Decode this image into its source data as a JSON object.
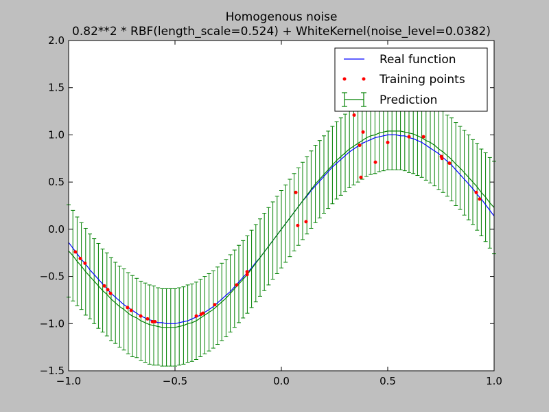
{
  "chart_data": {
    "type": "line",
    "title": "Homogenous noise",
    "subtitle": "0.82**2 * RBF(length_scale=0.524) + WhiteKernel(noise_level=0.0382)",
    "xlabel": "",
    "ylabel": "",
    "xlim": [
      -1.0,
      1.0
    ],
    "ylim": [
      -1.5,
      2.0
    ],
    "xticks": [
      "−1.0",
      "−0.5",
      "0.0",
      "0.5",
      "1.0"
    ],
    "xtick_values": [
      -1.0,
      -0.5,
      0.0,
      0.5,
      1.0
    ],
    "yticks": [
      "−1.5",
      "−1.0",
      "−0.5",
      "0.0",
      "0.5",
      "1.0",
      "1.5",
      "2.0"
    ],
    "ytick_values": [
      -1.5,
      -1.0,
      -0.5,
      0.0,
      0.5,
      1.0,
      1.5,
      2.0
    ],
    "grid": false,
    "legend_placement": "top-right",
    "legend": [
      "Real function",
      "Training points",
      "Prediction"
    ],
    "colors": {
      "real": "#0000ff",
      "points": "#ff0000",
      "prediction": "#008000",
      "background": "#bfbfbf",
      "axes": "#ffffff"
    },
    "x": [
      -1.0,
      -0.98,
      -0.96,
      -0.94,
      -0.92,
      -0.9,
      -0.88,
      -0.86,
      -0.84,
      -0.82,
      -0.8,
      -0.78,
      -0.76,
      -0.74,
      -0.72,
      -0.7,
      -0.68,
      -0.66,
      -0.64,
      -0.62,
      -0.6,
      -0.58,
      -0.56,
      -0.54,
      -0.52,
      -0.5,
      -0.48,
      -0.46,
      -0.44,
      -0.42,
      -0.4,
      -0.38,
      -0.36,
      -0.34,
      -0.32,
      -0.3,
      -0.28,
      -0.26,
      -0.24,
      -0.22,
      -0.2,
      -0.18,
      -0.16,
      -0.14,
      -0.12,
      -0.1,
      -0.08,
      -0.06,
      -0.04,
      -0.02,
      0.0,
      0.02,
      0.04,
      0.06,
      0.08,
      0.1,
      0.12,
      0.14,
      0.16,
      0.18,
      0.2,
      0.22,
      0.24,
      0.26,
      0.28,
      0.3,
      0.32,
      0.34,
      0.36,
      0.38,
      0.4,
      0.42,
      0.44,
      0.46,
      0.48,
      0.5,
      0.52,
      0.54,
      0.56,
      0.58,
      0.6,
      0.62,
      0.64,
      0.66,
      0.68,
      0.7,
      0.72,
      0.74,
      0.76,
      0.78,
      0.8,
      0.82,
      0.84,
      0.86,
      0.88,
      0.9,
      0.92,
      0.94,
      0.96,
      0.98,
      1.0
    ],
    "series": [
      {
        "name": "Real function",
        "kind": "line",
        "y": [
          -0.14,
          -0.2,
          -0.26,
          -0.32,
          -0.37,
          -0.43,
          -0.48,
          -0.53,
          -0.58,
          -0.63,
          -0.68,
          -0.72,
          -0.76,
          -0.8,
          -0.83,
          -0.86,
          -0.89,
          -0.92,
          -0.94,
          -0.96,
          -0.97,
          -0.99,
          -0.99,
          -1.0,
          -1.0,
          -1.0,
          -0.99,
          -0.98,
          -0.97,
          -0.95,
          -0.93,
          -0.91,
          -0.88,
          -0.85,
          -0.82,
          -0.78,
          -0.74,
          -0.7,
          -0.66,
          -0.61,
          -0.56,
          -0.51,
          -0.46,
          -0.41,
          -0.35,
          -0.3,
          -0.24,
          -0.18,
          -0.12,
          -0.06,
          0.0,
          0.06,
          0.12,
          0.18,
          0.24,
          0.3,
          0.35,
          0.41,
          0.46,
          0.51,
          0.56,
          0.61,
          0.66,
          0.7,
          0.74,
          0.78,
          0.82,
          0.85,
          0.88,
          0.91,
          0.93,
          0.95,
          0.97,
          0.98,
          0.99,
          1.0,
          1.0,
          1.0,
          0.99,
          0.99,
          0.97,
          0.96,
          0.94,
          0.92,
          0.89,
          0.86,
          0.83,
          0.8,
          0.76,
          0.72,
          0.68,
          0.63,
          0.58,
          0.53,
          0.48,
          0.43,
          0.37,
          0.32,
          0.26,
          0.2,
          0.14
        ]
      },
      {
        "name": "Prediction",
        "kind": "errorbar",
        "y": [
          -0.23,
          -0.28,
          -0.34,
          -0.39,
          -0.45,
          -0.5,
          -0.55,
          -0.6,
          -0.65,
          -0.69,
          -0.74,
          -0.78,
          -0.82,
          -0.85,
          -0.89,
          -0.92,
          -0.94,
          -0.97,
          -0.99,
          -1.01,
          -1.02,
          -1.03,
          -1.04,
          -1.04,
          -1.04,
          -1.04,
          -1.03,
          -1.02,
          -1.0,
          -0.99,
          -0.97,
          -0.94,
          -0.91,
          -0.88,
          -0.85,
          -0.81,
          -0.77,
          -0.73,
          -0.68,
          -0.63,
          -0.58,
          -0.53,
          -0.48,
          -0.42,
          -0.36,
          -0.3,
          -0.24,
          -0.18,
          -0.12,
          -0.06,
          0.0,
          0.06,
          0.12,
          0.18,
          0.24,
          0.3,
          0.36,
          0.42,
          0.48,
          0.53,
          0.58,
          0.63,
          0.68,
          0.73,
          0.77,
          0.81,
          0.85,
          0.88,
          0.91,
          0.94,
          0.97,
          0.99,
          1.0,
          1.02,
          1.03,
          1.04,
          1.04,
          1.04,
          1.04,
          1.03,
          1.02,
          1.01,
          0.99,
          0.97,
          0.94,
          0.92,
          0.89,
          0.85,
          0.82,
          0.78,
          0.74,
          0.69,
          0.65,
          0.6,
          0.55,
          0.5,
          0.45,
          0.39,
          0.34,
          0.28,
          0.23
        ],
        "yerr": [
          0.49,
          0.48,
          0.47,
          0.46,
          0.46,
          0.45,
          0.45,
          0.45,
          0.44,
          0.44,
          0.44,
          0.43,
          0.43,
          0.43,
          0.43,
          0.43,
          0.42,
          0.42,
          0.42,
          0.42,
          0.42,
          0.41,
          0.41,
          0.41,
          0.41,
          0.41,
          0.41,
          0.41,
          0.41,
          0.41,
          0.41,
          0.41,
          0.41,
          0.41,
          0.41,
          0.41,
          0.41,
          0.41,
          0.41,
          0.41,
          0.41,
          0.41,
          0.41,
          0.41,
          0.41,
          0.41,
          0.41,
          0.41,
          0.41,
          0.41,
          0.41,
          0.41,
          0.41,
          0.41,
          0.41,
          0.41,
          0.41,
          0.41,
          0.41,
          0.41,
          0.41,
          0.41,
          0.41,
          0.41,
          0.41,
          0.41,
          0.41,
          0.41,
          0.41,
          0.41,
          0.41,
          0.41,
          0.41,
          0.41,
          0.41,
          0.41,
          0.41,
          0.41,
          0.41,
          0.41,
          0.42,
          0.42,
          0.42,
          0.42,
          0.42,
          0.43,
          0.43,
          0.43,
          0.43,
          0.43,
          0.44,
          0.44,
          0.44,
          0.45,
          0.45,
          0.45,
          0.46,
          0.46,
          0.47,
          0.48,
          0.49
        ]
      },
      {
        "name": "Training points",
        "kind": "scatter",
        "points": [
          [
            -0.968,
            -0.24
          ],
          [
            -0.945,
            -0.31
          ],
          [
            -0.923,
            -0.36
          ],
          [
            -0.832,
            -0.6
          ],
          [
            -0.816,
            -0.64
          ],
          [
            -0.803,
            -0.68
          ],
          [
            -0.723,
            -0.83
          ],
          [
            -0.706,
            -0.86
          ],
          [
            -0.661,
            -0.92
          ],
          [
            -0.629,
            -0.95
          ],
          [
            -0.606,
            -0.98
          ],
          [
            -0.594,
            -0.98
          ],
          [
            -0.4,
            -0.92
          ],
          [
            -0.377,
            -0.9
          ],
          [
            -0.368,
            -0.89
          ],
          [
            -0.313,
            -0.8
          ],
          [
            -0.21,
            -0.59
          ],
          [
            -0.161,
            -0.48
          ],
          [
            -0.161,
            -0.45
          ],
          [
            0.068,
            0.39
          ],
          [
            0.077,
            0.04
          ],
          [
            0.116,
            0.08
          ],
          [
            0.342,
            1.21
          ],
          [
            0.368,
            0.89
          ],
          [
            0.384,
            1.03
          ],
          [
            0.374,
            0.55
          ],
          [
            0.442,
            0.71
          ],
          [
            0.5,
            0.92
          ],
          [
            0.6,
            0.98
          ],
          [
            0.668,
            0.98
          ],
          [
            0.752,
            0.77
          ],
          [
            0.755,
            0.75
          ],
          [
            0.79,
            0.7
          ],
          [
            0.916,
            0.39
          ],
          [
            0.932,
            0.32
          ]
        ]
      }
    ]
  }
}
